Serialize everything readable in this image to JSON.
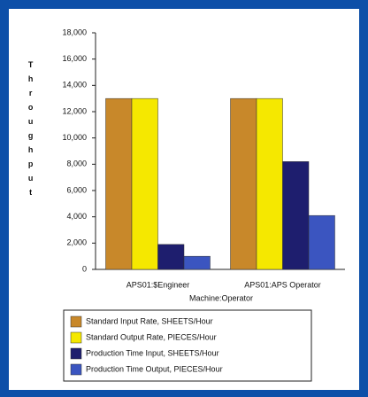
{
  "chart_data": {
    "type": "bar",
    "y_label": "Throughput",
    "x_label": "Machine:Operator",
    "categories": [
      "APS01:$Engineer",
      "APS01:APS Operator"
    ],
    "series": [
      {
        "name": "Standard Input Rate, SHEETS/Hour",
        "color": "#c8882a",
        "values": [
          13000,
          13000
        ]
      },
      {
        "name": "Standard Output Rate, PIECES/Hour",
        "color": "#f5e800",
        "values": [
          13000,
          13000
        ]
      },
      {
        "name": "Production Time Input, SHEETS/Hour",
        "color": "#1e1e6e",
        "values": [
          1900,
          8200
        ]
      },
      {
        "name": "Production Time Output, PIECES/Hour",
        "color": "#3b55c0",
        "values": [
          1000,
          4100
        ]
      }
    ],
    "ylim": [
      0,
      18000
    ],
    "yticks": [
      0,
      {
        "value": 2000,
        "label": "2,000"
      },
      {
        "value": 4000,
        "label": "4,000"
      },
      {
        "value": 6000,
        "label": "6,000"
      },
      {
        "value": 8000,
        "label": "8,000"
      },
      {
        "value": 10000,
        "label": "10,000"
      },
      {
        "value": 12000,
        "label": "12,000"
      },
      {
        "value": 14000,
        "label": "14,000"
      },
      {
        "value": 16000,
        "label": "16,000"
      },
      {
        "value": 18000,
        "label": "18,000"
      }
    ]
  }
}
